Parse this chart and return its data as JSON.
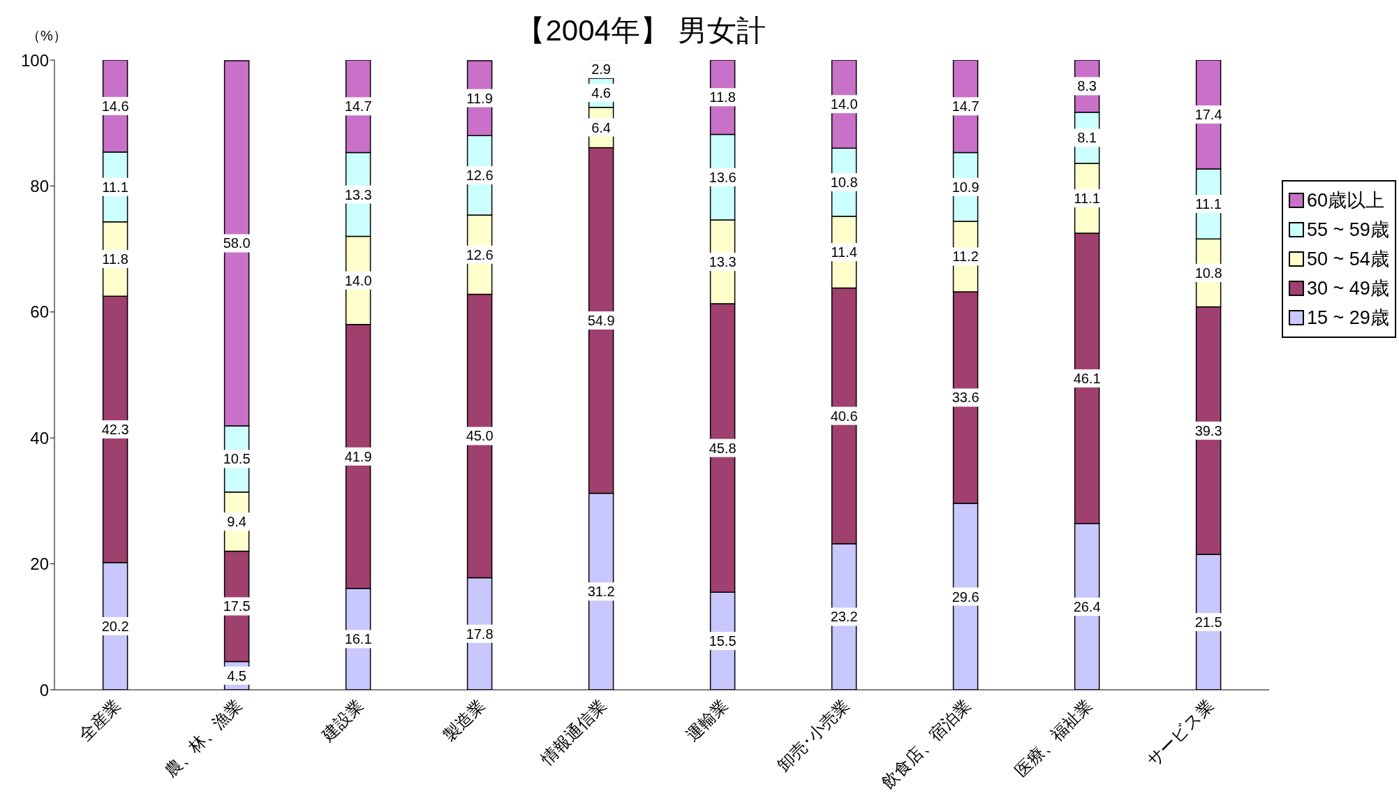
{
  "chart_data": {
    "type": "bar",
    "title": "【2004年】 男女計",
    "ylabel": "（%）",
    "stacked": true,
    "categories": [
      "全産業",
      "農、林、漁業",
      "建設業",
      "製造業",
      "情報通信業",
      "運輸業",
      "卸売･小売業",
      "飲食店、宿泊業",
      "医療、福祉業",
      "サービス業"
    ],
    "series": [
      {
        "name": "15 ~ 29歳",
        "color": "#c8c8ff",
        "values": [
          20.2,
          4.5,
          16.1,
          17.8,
          31.2,
          15.5,
          23.2,
          29.6,
          26.4,
          21.5
        ],
        "value_labels": [
          "20.2",
          "4.5",
          "16.1",
          "17.8",
          "31.2",
          "15.5",
          "23.2",
          "29.6",
          "26.4",
          "21.5"
        ]
      },
      {
        "name": "30 ~ 49歳",
        "color": "#a0406e",
        "values": [
          42.3,
          17.5,
          41.9,
          45.0,
          54.9,
          45.8,
          40.6,
          33.6,
          46.1,
          39.3
        ],
        "value_labels": [
          "42.3",
          "17.5",
          "41.9",
          "45.0",
          "54.9",
          "45.8",
          "40.6",
          "33.6",
          "46.1",
          "39.3"
        ]
      },
      {
        "name": "50 ~ 54歳",
        "color": "#ffffcc",
        "values": [
          11.8,
          9.4,
          14.0,
          12.6,
          6.4,
          13.3,
          11.4,
          11.2,
          11.1,
          10.8
        ],
        "value_labels": [
          "11.8",
          "9.4",
          "14.0",
          "12.6",
          "6.4",
          "13.3",
          "11.4",
          "11.2",
          "11.1",
          "10.8"
        ]
      },
      {
        "name": "55 ~ 59歳",
        "color": "#ccffff",
        "values": [
          11.1,
          10.5,
          13.3,
          12.6,
          4.6,
          13.6,
          10.8,
          10.9,
          8.1,
          11.1
        ],
        "value_labels": [
          "11.1",
          "10.5",
          "13.3",
          "12.6",
          "4.6",
          "13.6",
          "10.8",
          "10.9",
          "8.1",
          "11.1"
        ]
      },
      {
        "name": "60歳以上",
        "color": "#c971c9",
        "values": [
          14.6,
          58.0,
          14.7,
          11.9,
          2.9,
          11.8,
          14.0,
          14.7,
          8.3,
          17.4
        ],
        "value_labels": [
          "14.6",
          "58.0",
          "14.7",
          "11.9",
          "2.9",
          "11.8",
          "14.0",
          "14.7",
          "8.3",
          "17.4"
        ]
      }
    ],
    "ylim": [
      0,
      100
    ],
    "yticks": [
      0,
      20,
      40,
      60,
      80,
      100
    ],
    "legend": "right"
  }
}
